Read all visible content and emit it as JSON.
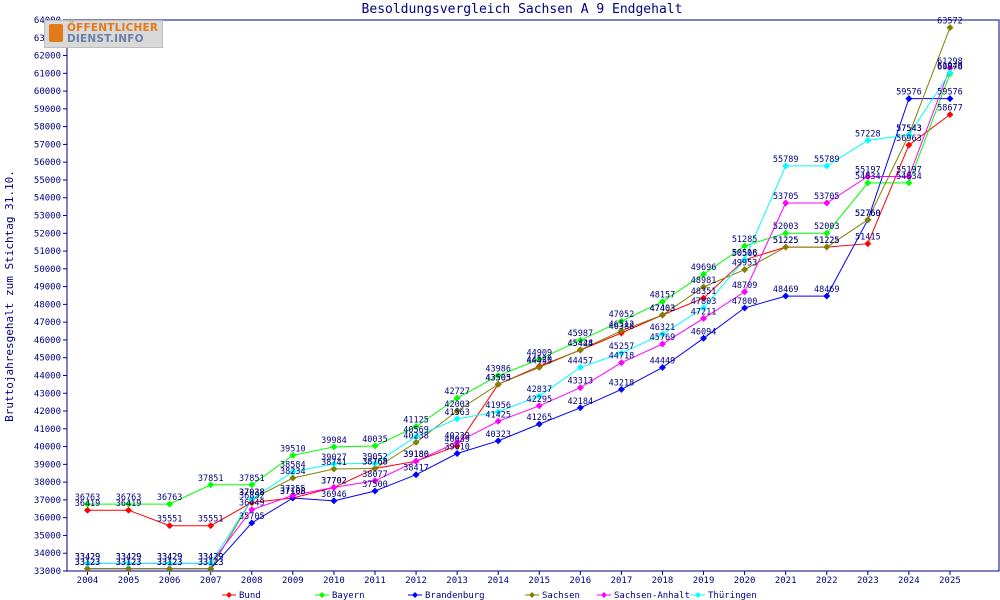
{
  "logo": {
    "line1": "ÖFFENTLICHER",
    "line2": "DIENST.INFO"
  },
  "chart_data": {
    "type": "line",
    "title": "Besoldungsvergleich Sachsen A 9 Endgehalt",
    "xlabel": "",
    "ylabel": "Bruttojahresgehalt zum Stichtag 31.10.",
    "ylim": [
      33000,
      64000
    ],
    "ytick_step": 1000,
    "grid": false,
    "legend_position": "bottom",
    "categories": [
      "2004",
      "2005",
      "2006",
      "2007",
      "2008",
      "2009",
      "2010",
      "2011",
      "2012",
      "2013",
      "2014",
      "2015",
      "2016",
      "2017",
      "2018",
      "2019",
      "2020",
      "2021",
      "2022",
      "2023",
      "2024",
      "2025"
    ],
    "series": [
      {
        "name": "Bund",
        "color": "#ff0000",
        "values": [
          36419,
          36419,
          35551,
          35551,
          36852,
          37108,
          37702,
          38768,
          39180,
          40039,
          43503,
          44520,
          45428,
          46388,
          47403,
          48351,
          50506,
          51225,
          51225,
          51415,
          56963,
          58677
        ]
      },
      {
        "name": "Bayern",
        "color": "#00ff00",
        "values": [
          36763,
          36763,
          36763,
          37851,
          37851,
          39510,
          39984,
          40035,
          41125,
          42727,
          43986,
          44909,
          45987,
          47052,
          48157,
          49696,
          51285,
          52003,
          52003,
          54834,
          54834,
          60978
        ]
      },
      {
        "name": "Brandenburg",
        "color": "#0000ff",
        "values": [
          33123,
          33123,
          33123,
          33123,
          35705,
          37108,
          36946,
          37500,
          38417,
          39610,
          40323,
          41265,
          42184,
          43218,
          44449,
          46094,
          47800,
          48469,
          48469,
          52760,
          59576,
          59576
        ]
      },
      {
        "name": "Sachsen",
        "color": "#808000",
        "values": [
          33123,
          33123,
          33123,
          33123,
          37038,
          38234,
          38741,
          38768,
          40238,
          42003,
          43505,
          44455,
          45444,
          46512,
          47403,
          48981,
          49953,
          51225,
          51225,
          52760,
          57543,
          63572
        ]
      },
      {
        "name": "Sachsen-Anhalt",
        "color": "#ff00ff",
        "values": [
          33429,
          33429,
          33429,
          33429,
          36449,
          37255,
          37702,
          38077,
          39180,
          40239,
          41425,
          42295,
          43313,
          44718,
          45769,
          47211,
          48709,
          53705,
          53705,
          55197,
          55197,
          61298
        ]
      },
      {
        "name": "Thüringen",
        "color": "#00ffff",
        "values": [
          33429,
          33429,
          33429,
          33429,
          37038,
          38584,
          39027,
          39052,
          40569,
          41563,
          41956,
          42837,
          44457,
          45257,
          46321,
          47803,
          50518,
          55789,
          55789,
          57228,
          57543,
          61046
        ]
      }
    ]
  }
}
